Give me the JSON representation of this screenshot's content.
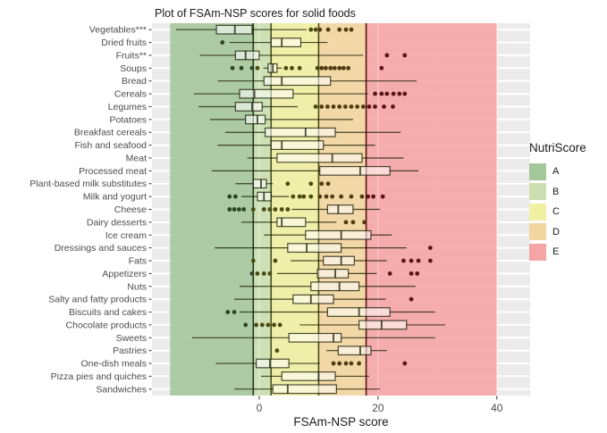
{
  "title": "Plot of FSAm-NSP scores for solid foods",
  "x_axis": {
    "label": "FSAm-NSP score",
    "tick_labels": [
      "0",
      "20",
      "40"
    ]
  },
  "legend": {
    "title": "NutriScore",
    "items": [
      {
        "label": "A",
        "color": "#a5c79c"
      },
      {
        "label": "B",
        "color": "#cbe0b0"
      },
      {
        "label": "C",
        "color": "#f1f0a2"
      },
      {
        "label": "D",
        "color": "#f3d5a0"
      },
      {
        "label": "E",
        "color": "#f5a5a5"
      }
    ]
  },
  "chart_data": {
    "type": "boxplot",
    "orientation": "horizontal",
    "title": "Plot of FSAm-NSP scores for solid foods",
    "xlabel": "FSAm-NSP score",
    "xlim": [
      -18.05,
      45.6
    ],
    "x_major_ticks": [
      0,
      20,
      40
    ],
    "x_minor_ticks": [
      -10,
      10,
      30
    ],
    "panel_bg": "#ebebeb",
    "grid_color": "#ffffff",
    "bands": [
      {
        "grade": "A",
        "from": -15,
        "to": -1,
        "color": "#a5c79c"
      },
      {
        "grade": "B",
        "from": -1,
        "to": 2,
        "color": "#cbe0b0"
      },
      {
        "grade": "C",
        "from": 2,
        "to": 10,
        "color": "#f1f0a2"
      },
      {
        "grade": "D",
        "from": 10,
        "to": 18,
        "color": "#f3d5a0"
      },
      {
        "grade": "E",
        "from": 18,
        "to": 40,
        "color": "#f5a5a5"
      }
    ],
    "boundary_lines": [
      {
        "x": -1,
        "color": "#1f3a1f"
      },
      {
        "x": 2,
        "color": "#4a511c"
      },
      {
        "x": 10,
        "color": "#4c4c16"
      },
      {
        "x": 18,
        "color": "#5a1515"
      }
    ],
    "box_fill": "rgba(255,255,255,0.55)",
    "stroke_color": "rgba(25,28,2,0.78)",
    "categories": [
      "Vegetables***",
      "Dried fruits",
      "Fruits**",
      "Soups",
      "Bread",
      "Cereals",
      "Legumes",
      "Potatoes",
      "Breakfast cereals",
      "Fish and seafood",
      "Meat",
      "Processed meat",
      "Plant-based milk substitutes",
      "Milk and yogurt",
      "Cheese",
      "Dairy desserts",
      "Ice cream",
      "Dressings and sauces",
      "Fats",
      "Appetizers",
      "Nuts",
      "Salty and fatty products",
      "Biscuits and cakes",
      "Chocolate products",
      "Sweets",
      "Pastries",
      "One-dish meals",
      "Pizza pies and quiches",
      "Sandwiches"
    ],
    "series": [
      {
        "name": "Vegetables***",
        "lo": -14,
        "q1": -7.2,
        "med": -4.1,
        "q3": -1.2,
        "hi": 8,
        "out": [
          8.7,
          9.5,
          10.2,
          11.6,
          13.5,
          14.6,
          15.5
        ]
      },
      {
        "name": "Dried fruits",
        "lo": -5,
        "q1": 2,
        "med": 3.8,
        "q3": 7,
        "hi": 11.5,
        "out": [
          -6.2
        ]
      },
      {
        "name": "Fruits**",
        "lo": -10,
        "q1": -4,
        "med": -2.3,
        "q3": 0,
        "hi": 17.5,
        "out": [
          21.5,
          24.5
        ]
      },
      {
        "name": "Soups",
        "lo": 0.7,
        "q1": 1.5,
        "med": 2.3,
        "q3": 3,
        "hi": 3.8,
        "out": [
          -4.5,
          -3,
          -1.2,
          -0.3,
          4.5,
          5.5,
          6.8,
          9.8,
          10.5,
          11.2,
          12,
          12.7,
          13.5,
          14.2,
          15,
          20.6
        ]
      },
      {
        "name": "Bread",
        "lo": -7,
        "q1": 0.8,
        "med": 3.8,
        "q3": 12,
        "hi": 26.5,
        "out": []
      },
      {
        "name": "Cereals",
        "lo": -11,
        "q1": -3.3,
        "med": -0.8,
        "q3": 5.7,
        "hi": 18.3,
        "out": [
          19.5,
          20.6,
          21.5,
          22.6,
          23.6,
          24.5
        ]
      },
      {
        "name": "Legumes",
        "lo": -10.2,
        "q1": -4,
        "med": -1.2,
        "q3": 0.5,
        "hi": 6.5,
        "out": [
          9.5,
          10.5,
          11.5,
          12.5,
          13.5,
          14.5,
          15.5,
          16.5,
          17.5,
          18.5,
          19.5,
          21,
          22.5
        ]
      },
      {
        "name": "Potatoes",
        "lo": -8.3,
        "q1": -2.3,
        "med": -0.3,
        "q3": 1,
        "hi": 15.8,
        "out": []
      },
      {
        "name": "Breakfast cereals",
        "lo": -5.7,
        "q1": 1,
        "med": 7.8,
        "q3": 12.8,
        "hi": 23.8,
        "out": []
      },
      {
        "name": "Fish and seafood",
        "lo": -7,
        "q1": 2,
        "med": 3.8,
        "q3": 10.8,
        "hi": 19.5,
        "out": []
      },
      {
        "name": "Meat",
        "lo": -2,
        "q1": 3,
        "med": 12.3,
        "q3": 17.3,
        "hi": 24.3,
        "out": []
      },
      {
        "name": "Processed meat",
        "lo": -8,
        "q1": 10.2,
        "med": 17,
        "q3": 22,
        "hi": 26.8,
        "out": []
      },
      {
        "name": "Plant-based milk substitutes",
        "lo": -4,
        "q1": -1,
        "med": 0.3,
        "q3": 1.2,
        "hi": 2.3,
        "out": [
          4.8,
          8.7,
          10.5,
          11.6
        ]
      },
      {
        "name": "Milk and yogurt",
        "lo": -3,
        "q1": -0.3,
        "med": 0.8,
        "q3": 2,
        "hi": 5,
        "out": [
          -5,
          -4,
          5.7,
          6.8,
          7.5,
          8.7,
          10.2,
          11.3,
          12.3,
          13.8,
          15.5,
          17.3,
          18.3,
          19.2,
          20.8
        ]
      },
      {
        "name": "Cheese",
        "lo": 5.5,
        "q1": 11.5,
        "med": 13.3,
        "q3": 15.8,
        "hi": 20.3,
        "out": [
          -5,
          -4.2,
          -3.4,
          -2.6,
          -1,
          0.8,
          1.8,
          2.7,
          3.8,
          4.8
        ]
      },
      {
        "name": "Dairy desserts",
        "lo": -3,
        "q1": 3,
        "med": 3.8,
        "q3": 7.8,
        "hi": 13,
        "out": [
          14.6,
          15.8,
          17.7
        ]
      },
      {
        "name": "Ice cream",
        "lo": 0.8,
        "q1": 7.8,
        "med": 13.8,
        "q3": 18.8,
        "hi": 22.3,
        "out": []
      },
      {
        "name": "Dressings and sauces",
        "lo": -7.5,
        "q1": 4.8,
        "med": 8,
        "q3": 13.8,
        "hi": 24.8,
        "out": [
          28.8
        ]
      },
      {
        "name": "Fats",
        "lo": 5.3,
        "q1": 10.8,
        "med": 13.8,
        "q3": 16,
        "hi": 21.5,
        "out": [
          -1,
          2.7,
          24.3,
          25.6,
          26.8,
          28.8
        ]
      },
      {
        "name": "Appetizers",
        "lo": 3,
        "q1": 9.8,
        "med": 12.8,
        "q3": 15,
        "hi": 19.8,
        "out": [
          -1.2,
          -0.3,
          0.8,
          1.8,
          22,
          25.6,
          26.6
        ]
      },
      {
        "name": "Nuts",
        "lo": -3.3,
        "q1": 8.7,
        "med": 13.5,
        "q3": 16.8,
        "hi": 26.3,
        "out": []
      },
      {
        "name": "Salty and fatty products",
        "lo": -4.2,
        "q1": 5.7,
        "med": 8.7,
        "q3": 12.5,
        "hi": 21.3,
        "out": [
          25.6
        ]
      },
      {
        "name": "Biscuits and cakes",
        "lo": -3.3,
        "q1": 11.5,
        "med": 16.8,
        "q3": 22,
        "hi": 29.6,
        "out": [
          -5.3,
          -4.2
        ]
      },
      {
        "name": "Chocolate products",
        "lo": 6.8,
        "q1": 16.8,
        "med": 20.6,
        "q3": 24.8,
        "hi": 31.3,
        "out": [
          -2.3,
          -0.5,
          0.5,
          1.5,
          2.5,
          3.5
        ]
      },
      {
        "name": "Sweets",
        "lo": -11.3,
        "q1": 5,
        "med": 12.5,
        "q3": 13.8,
        "hi": 29.6,
        "out": []
      },
      {
        "name": "Pastries",
        "lo": 11.3,
        "q1": 13.3,
        "med": 17,
        "q3": 18.8,
        "hi": 21.5,
        "out": [
          3
        ]
      },
      {
        "name": "One-dish meals",
        "lo": -7.3,
        "q1": -0.5,
        "med": 1.8,
        "q3": 5,
        "hi": 10.2,
        "out": [
          12.5,
          13.5,
          14.6,
          15.5,
          16.8,
          24.5
        ]
      },
      {
        "name": "Pizza pies and quiches",
        "lo": 0.3,
        "q1": 3.8,
        "med": 10,
        "q3": 12.8,
        "hi": 18.5,
        "out": []
      },
      {
        "name": "Sandwiches",
        "lo": -4.2,
        "q1": 2.3,
        "med": 4.8,
        "q3": 13,
        "hi": 20.3,
        "out": []
      }
    ],
    "text_color": "#4d4d4d",
    "outlier_colors": {
      "green_zone": "#2e4424",
      "yellow_zone": "#4a4a12",
      "orange_zone": "#4f3d10",
      "red_zone": "#5c1414"
    }
  }
}
